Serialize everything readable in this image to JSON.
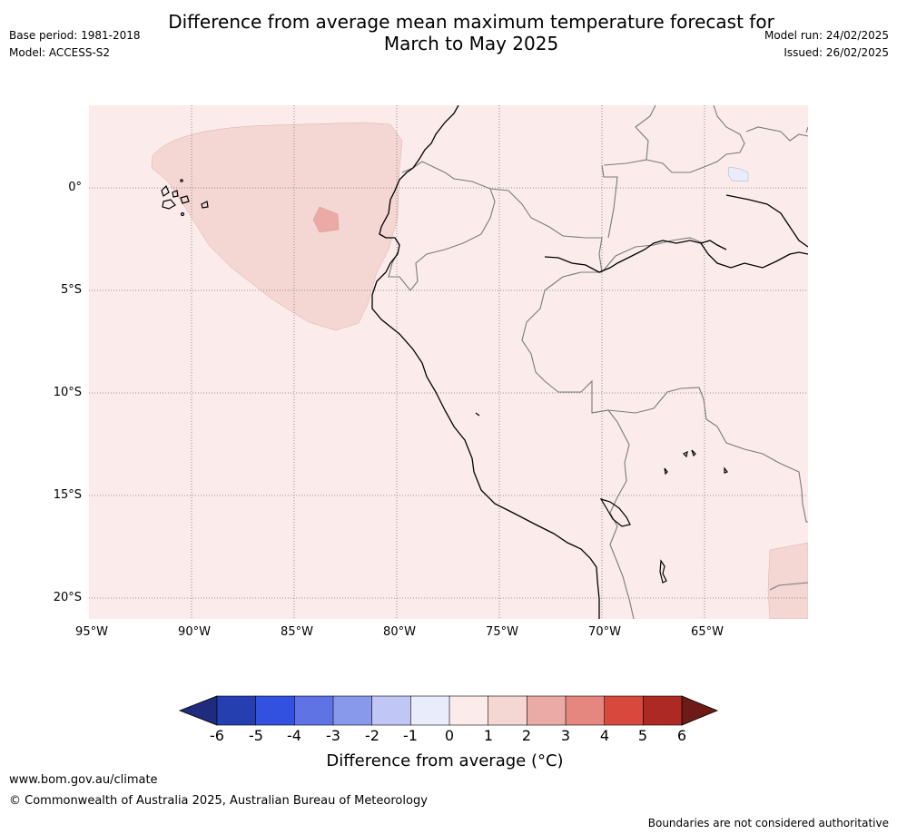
{
  "title_line1": "Difference from average mean maximum temperature forecast for",
  "title_line2": "March to May 2025",
  "base_period": "Base period: 1981-2018",
  "model": "Model: ACCESS-S2",
  "model_run": "Model run: 24/02/2025",
  "issued": "Issued: 26/02/2025",
  "lat_labels": [
    "0°",
    "5°S",
    "10°S",
    "15°S",
    "20°S"
  ],
  "lon_labels": [
    "95°W",
    "90°W",
    "85°W",
    "80°W",
    "75°W",
    "70°W",
    "65°W"
  ],
  "colorbar": {
    "ticks": [
      "-6",
      "-5",
      "-4",
      "-3",
      "-2",
      "-1",
      "0",
      "1",
      "2",
      "3",
      "4",
      "5",
      "6"
    ],
    "colors": [
      "#1f2c7e",
      "#253fb0",
      "#3351e0",
      "#5f73e6",
      "#8898eb",
      "#c0c7f5",
      "#e9ecfb",
      "#fbeceb",
      "#f4d6d3",
      "#ebaaa6",
      "#e5877f",
      "#d9483c",
      "#ac2a23",
      "#6e1a16"
    ],
    "label": "Difference from average ($^\\circ$C)",
    "label_display": "Difference from average (°C)"
  },
  "map": {
    "background_color": "#fbeceb",
    "anomaly_1_2_color": "#f4d6d3",
    "anomaly_2_3_color": "#ebaaa6",
    "anomaly_0_m1_color": "#e9ecfb"
  },
  "footer": {
    "url": "www.bom.gov.au/climate",
    "copyright": "© Commonwealth of Australia 2025, Australian Bureau of Meteorology",
    "disclaimer": "Boundaries are not considered authoritative"
  }
}
